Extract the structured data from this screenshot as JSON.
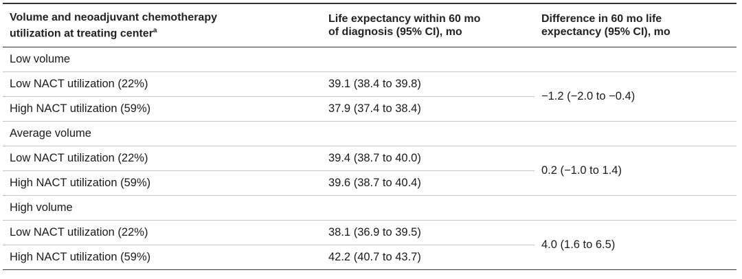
{
  "table": {
    "header": [
      [
        "Volume and neoadjuvant chemotherapy",
        "utilization at treating center"
      ],
      [
        "Life expectancy within 60 mo",
        "of diagnosis (95% CI), mo"
      ],
      [
        "Difference in 60 mo life",
        "expectancy (95% CI), mo"
      ]
    ],
    "header_footnote": "a",
    "groups": [
      {
        "label": "Low volume",
        "rows": [
          [
            "Low NACT utilization (22%)",
            "39.1 (38.4 to 39.8)"
          ],
          [
            "High NACT utilization (59%)",
            "37.9 (37.4 to 38.4)"
          ]
        ],
        "difference": "−1.2 (−2.0 to −0.4)"
      },
      {
        "label": "Average volume",
        "rows": [
          [
            "Low NACT utilization (22%)",
            "39.4 (38.7 to 40.0)"
          ],
          [
            "High NACT utilization (59%)",
            "39.6 (38.7 to 40.4)"
          ]
        ],
        "difference": "0.2 (−1.0 to 1.4)"
      },
      {
        "label": "High volume",
        "rows": [
          [
            "Low NACT utilization (22%)",
            "38.1 (36.9 to 39.5)"
          ],
          [
            "High NACT utilization (59%)",
            "42.2 (40.7 to 43.7)"
          ]
        ],
        "difference": "4.0 (1.6 to 6.5)"
      }
    ]
  }
}
